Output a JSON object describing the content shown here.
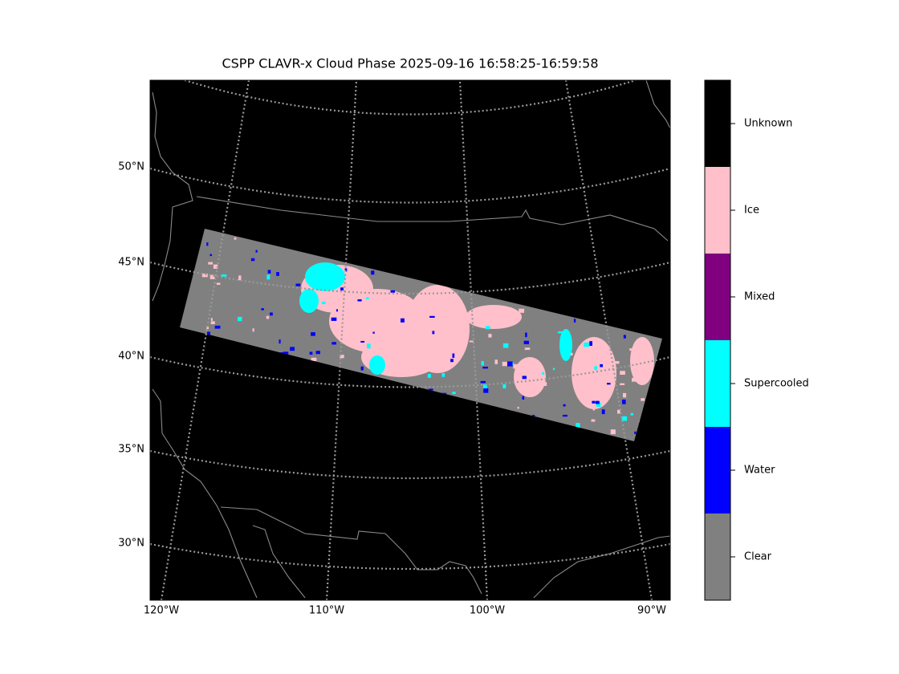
{
  "title": "CSPP CLAVR-x Cloud Phase 2025-09-16 16:58:25-16:59:58",
  "map": {
    "lat_labels": [
      "50°N",
      "45°N",
      "40°N",
      "35°N",
      "30°N"
    ],
    "lon_labels": [
      "120°W",
      "110°W",
      "100°W",
      "90°W"
    ]
  },
  "colorbar": {
    "classes": [
      {
        "label": "Unknown",
        "color": "#000000"
      },
      {
        "label": "Ice",
        "color": "#ffc0cb"
      },
      {
        "label": "Mixed",
        "color": "#800080"
      },
      {
        "label": "Supercooled",
        "color": "#00ffff"
      },
      {
        "label": "Water",
        "color": "#0000ff"
      },
      {
        "label": "Clear",
        "color": "#808080"
      }
    ]
  }
}
